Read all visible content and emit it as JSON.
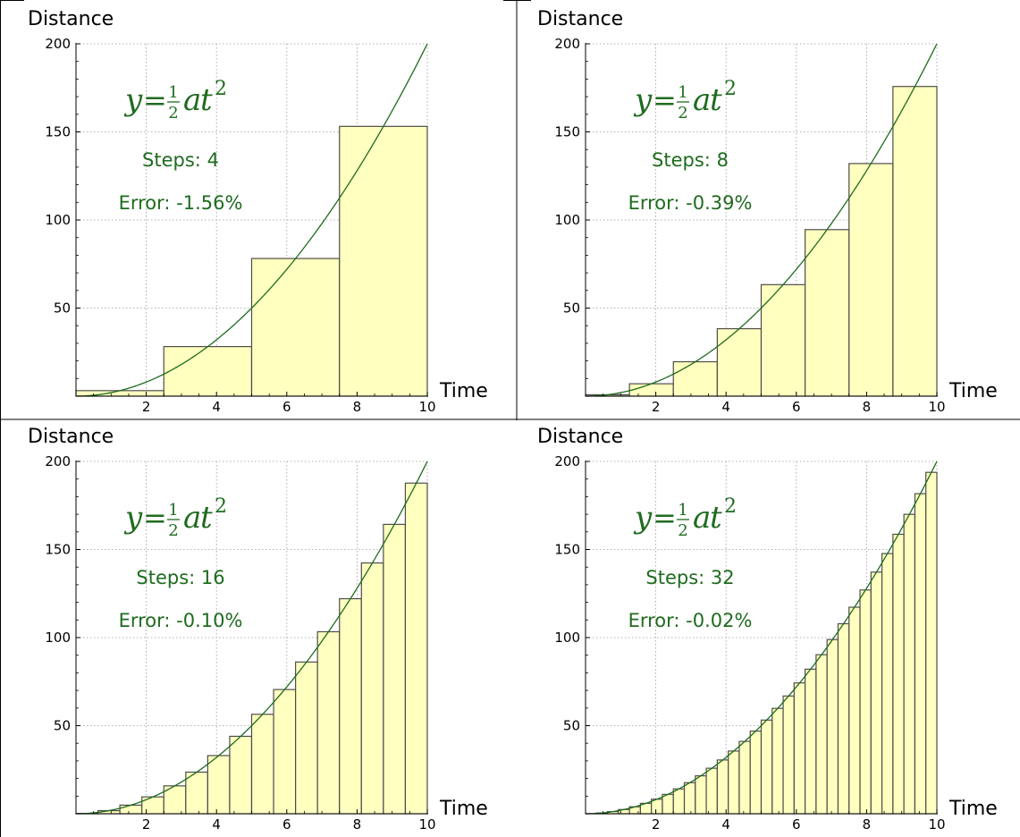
{
  "figure": {
    "formula": {
      "y": "y",
      "eq": "=",
      "numerator": "1",
      "denominator": "2",
      "a": "a",
      "t": "t",
      "exponent": "2"
    },
    "steps_label": "Steps:",
    "error_label": "Error:"
  },
  "colors": {
    "curve": "#1f6b1f",
    "bar_fill": "#ffffbf",
    "bar_stroke": "#4d4d4d",
    "annotation": "#1f6b1f",
    "grid": "#999999",
    "axis": "#000000"
  },
  "chart_data": [
    {
      "type": "bar",
      "panel": "top-left",
      "xlabel": "Time",
      "ylabel": "Distance",
      "xlim": [
        0,
        10
      ],
      "ylim": [
        0,
        200
      ],
      "xticks": [
        2,
        4,
        6,
        8,
        10
      ],
      "yticks": [
        50,
        100,
        150,
        200
      ],
      "grid": true,
      "steps": "4",
      "error": "-1.56%",
      "curve": "y = 2t^2",
      "bin_width": 2.5,
      "bin_left_edges": [
        0,
        2.5,
        5,
        7.5
      ],
      "values": [
        3.13,
        28.13,
        78.13,
        153.13
      ]
    },
    {
      "type": "bar",
      "panel": "top-right",
      "xlabel": "Time",
      "ylabel": "Distance",
      "xlim": [
        0,
        10
      ],
      "ylim": [
        0,
        200
      ],
      "xticks": [
        2,
        4,
        6,
        8,
        10
      ],
      "yticks": [
        50,
        100,
        150,
        200
      ],
      "grid": true,
      "steps": "8",
      "error": "-0.39%",
      "curve": "y = 2t^2",
      "bin_width": 1.25,
      "bin_left_edges": [
        0,
        1.25,
        2.5,
        3.75,
        5,
        6.25,
        7.5,
        8.75
      ],
      "values": [
        0.78,
        7.03,
        19.53,
        38.28,
        63.28,
        94.53,
        132.03,
        175.78
      ]
    },
    {
      "type": "bar",
      "panel": "bottom-left",
      "xlabel": "Time",
      "ylabel": "Distance",
      "xlim": [
        0,
        10
      ],
      "ylim": [
        0,
        200
      ],
      "xticks": [
        2,
        4,
        6,
        8,
        10
      ],
      "yticks": [
        50,
        100,
        150,
        200
      ],
      "grid": true,
      "steps": "16",
      "error": "-0.10%",
      "curve": "y = 2t^2",
      "bin_width": 0.625,
      "bin_left_edges": [
        0,
        0.625,
        1.25,
        1.875,
        2.5,
        3.125,
        3.75,
        4.375,
        5,
        5.625,
        6.25,
        6.875,
        7.5,
        8.125,
        8.75,
        9.375
      ],
      "values": [
        0.2,
        1.76,
        4.88,
        9.57,
        15.82,
        23.63,
        33.01,
        43.95,
        56.45,
        70.51,
        86.13,
        103.32,
        122.07,
        142.38,
        164.26,
        187.7
      ]
    },
    {
      "type": "bar",
      "panel": "bottom-right",
      "xlabel": "Time",
      "ylabel": "Distance",
      "xlim": [
        0,
        10
      ],
      "ylim": [
        0,
        200
      ],
      "xticks": [
        2,
        4,
        6,
        8,
        10
      ],
      "yticks": [
        50,
        100,
        150,
        200
      ],
      "grid": true,
      "steps": "32",
      "error": "-0.02%",
      "curve": "y = 2t^2",
      "bin_width": 0.3125,
      "bin_left_edges": [
        0,
        0.3125,
        0.625,
        0.9375,
        1.25,
        1.5625,
        1.875,
        2.1875,
        2.5,
        2.8125,
        3.125,
        3.4375,
        3.75,
        4.0625,
        4.375,
        4.6875,
        5,
        5.3125,
        5.625,
        5.9375,
        6.25,
        6.5625,
        6.875,
        7.1875,
        7.5,
        7.8125,
        8.125,
        8.4375,
        8.75,
        9.0625,
        9.375,
        9.6875
      ],
      "values": [
        0.05,
        0.44,
        1.22,
        2.39,
        3.96,
        5.91,
        8.25,
        10.99,
        14.11,
        17.63,
        21.53,
        25.83,
        30.52,
        35.6,
        41.07,
        46.92,
        53.17,
        59.82,
        66.85,
        74.27,
        82.08,
        90.29,
        98.88,
        107.86,
        117.24,
        127.01,
        137.16,
        147.71,
        158.65,
        169.97,
        181.69,
        193.8
      ]
    }
  ]
}
